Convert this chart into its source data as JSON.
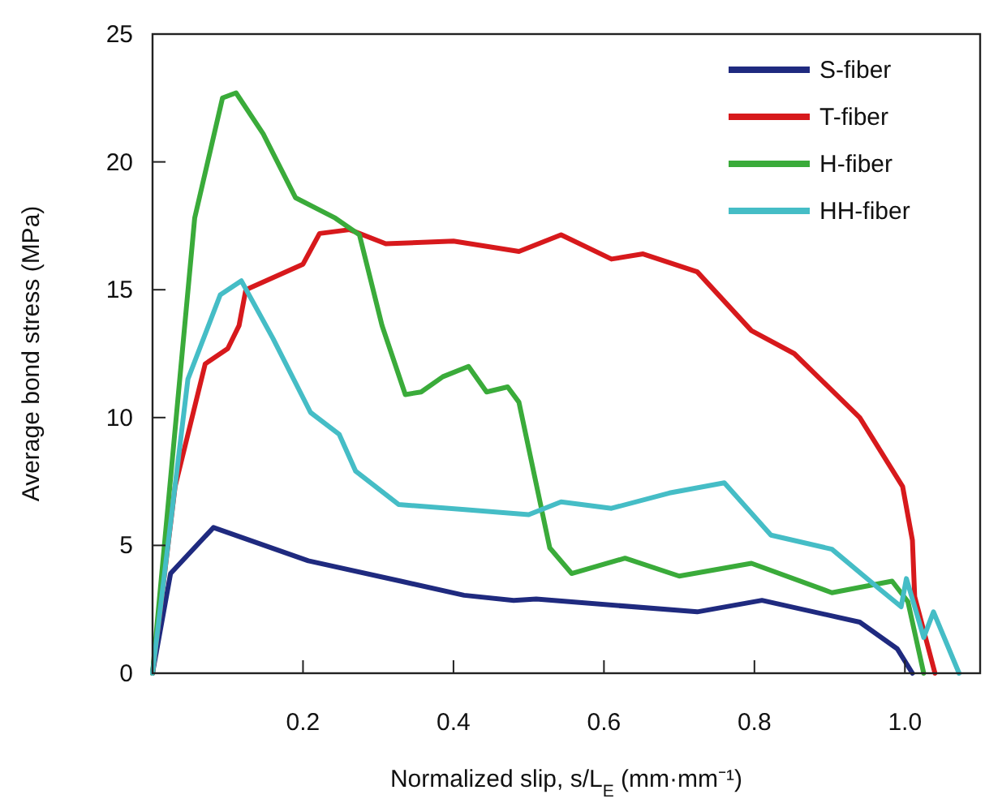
{
  "chart_data": {
    "type": "line",
    "xlabel": "Normalized slip, s/L$_{E}$ (mm·mm⁻¹)",
    "ylabel": "Average bond stress (MPa)",
    "xlim": [
      0,
      1.1
    ],
    "xticks": [
      0.2,
      0.4,
      0.6,
      0.8,
      {
        "value": 1,
        "label": "1.0"
      }
    ],
    "ylim": [
      0,
      25
    ],
    "yticks": [
      0,
      5,
      10,
      15,
      20,
      25
    ],
    "legend": "top right",
    "grid": false,
    "marker": "none",
    "line_style": "solid",
    "series": [
      {
        "name": "S-fiber",
        "color": "#1f2a7f",
        "x": [
          0,
          0.024,
          0.081,
          0.207,
          0.33,
          0.414,
          0.48,
          0.51,
          0.724,
          0.81,
          0.94,
          0.99,
          1.01
        ],
        "values": [
          0,
          3.9,
          5.7,
          4.4,
          3.6,
          3.05,
          2.85,
          2.9,
          2.4,
          2.85,
          2.0,
          0.95,
          0
        ]
      },
      {
        "name": "T-fiber",
        "color": "#d7191c",
        "x": [
          0,
          0.03,
          0.07,
          0.1,
          0.115,
          0.124,
          0.2,
          0.222,
          0.262,
          0.31,
          0.4,
          0.487,
          0.543,
          0.61,
          0.652,
          0.724,
          0.796,
          0.853,
          0.94,
          0.997,
          1.01,
          1.013,
          1.04
        ],
        "values": [
          0,
          7.3,
          12.1,
          12.7,
          13.6,
          15.0,
          16.0,
          17.2,
          17.35,
          16.8,
          16.9,
          16.5,
          17.15,
          16.2,
          16.4,
          15.7,
          13.4,
          12.5,
          10.0,
          7.3,
          5.2,
          3.0,
          0
        ]
      },
      {
        "name": "H-fiber",
        "color": "#3aab3a",
        "x": [
          0,
          0.056,
          0.093,
          0.111,
          0.147,
          0.19,
          0.243,
          0.275,
          0.305,
          0.336,
          0.357,
          0.386,
          0.42,
          0.444,
          0.472,
          0.487,
          0.528,
          0.557,
          0.628,
          0.7,
          0.796,
          0.903,
          0.983,
          1.004,
          1.025
        ],
        "values": [
          0,
          17.8,
          22.5,
          22.7,
          21.1,
          18.6,
          17.8,
          17.15,
          13.6,
          10.9,
          11.0,
          11.6,
          12.0,
          11.0,
          11.2,
          10.6,
          4.9,
          3.9,
          4.5,
          3.8,
          4.3,
          3.15,
          3.6,
          2.8,
          0
        ]
      },
      {
        "name": "HH-fiber",
        "color": "#45bdc6",
        "x": [
          0,
          0.047,
          0.09,
          0.118,
          0.16,
          0.21,
          0.248,
          0.27,
          0.327,
          0.415,
          0.5,
          0.543,
          0.61,
          0.687,
          0.76,
          0.822,
          0.903,
          0.966,
          0.995,
          1.002,
          1.025,
          1.038,
          1.072
        ],
        "values": [
          0,
          11.5,
          14.8,
          15.35,
          13.1,
          10.2,
          9.35,
          7.9,
          6.6,
          6.4,
          6.2,
          6.7,
          6.45,
          7.05,
          7.45,
          5.4,
          4.85,
          3.3,
          2.6,
          3.7,
          1.4,
          2.4,
          0
        ]
      }
    ]
  }
}
